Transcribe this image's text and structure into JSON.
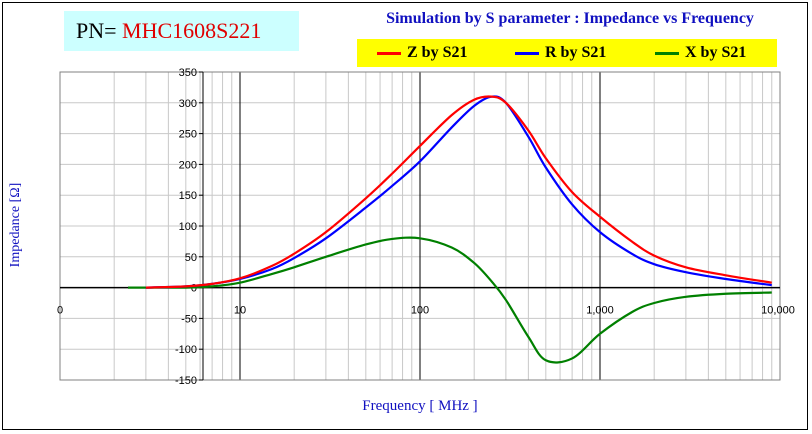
{
  "header": {
    "pn_prefix": "PN=",
    "pn_value": "MHC1608S221",
    "title": "Simulation by S parameter : Impedance vs Frequency"
  },
  "colors": {
    "z": "#ff0000",
    "r": "#0000ff",
    "x": "#008000",
    "pn_box": "#ccffff",
    "legend_bg": "#ffff00",
    "title": "#1010c0"
  },
  "chart_data": {
    "type": "line",
    "title": "Simulation by S parameter : Impedance vs Frequency",
    "xlabel": "Frequency [ MHz ]",
    "ylabel": "Impedance [Ω]",
    "x_scale": "log",
    "xlim": [
      1,
      10000
    ],
    "ylim": [
      -150,
      350
    ],
    "x_tick_labels": [
      "0",
      "10",
      "100",
      "1,000",
      "10,000"
    ],
    "y_ticks": [
      350,
      300,
      250,
      200,
      150,
      100,
      50,
      0,
      -50,
      -100,
      -150
    ],
    "y_tick_labels": [
      "350",
      "300",
      "250",
      "200",
      "150",
      "100",
      "50",
      "0",
      "-50",
      "-100",
      "-150"
    ],
    "grid": true,
    "legend_position": "top-right",
    "series": [
      {
        "name": "Z by S21",
        "color": "#ff0000",
        "x": [
          3,
          5,
          7,
          10,
          15,
          20,
          30,
          50,
          70,
          100,
          150,
          200,
          250,
          300,
          400,
          500,
          700,
          1000,
          1500,
          2000,
          3000,
          5000,
          9000
        ],
        "y": [
          0,
          2,
          6,
          15,
          35,
          55,
          90,
          145,
          185,
          230,
          280,
          305,
          310,
          300,
          255,
          210,
          155,
          115,
          75,
          52,
          33,
          20,
          8
        ]
      },
      {
        "name": "R by S21",
        "color": "#0000ff",
        "x": [
          3,
          5,
          7,
          10,
          15,
          20,
          30,
          50,
          70,
          100,
          150,
          200,
          250,
          300,
          400,
          500,
          700,
          1000,
          1500,
          2000,
          3000,
          5000,
          9000
        ],
        "y": [
          0,
          2,
          6,
          14,
          30,
          48,
          80,
          130,
          165,
          205,
          260,
          295,
          310,
          300,
          245,
          195,
          135,
          90,
          55,
          38,
          25,
          14,
          4
        ]
      },
      {
        "name": "X by S21",
        "color": "#008000",
        "x": [
          3,
          5,
          7,
          10,
          15,
          20,
          30,
          50,
          70,
          100,
          150,
          200,
          250,
          300,
          400,
          500,
          700,
          1000,
          1500,
          2000,
          3000,
          5000,
          9000
        ],
        "y": [
          0,
          0,
          2,
          8,
          22,
          33,
          50,
          70,
          79,
          80,
          65,
          40,
          10,
          -20,
          -80,
          -118,
          -115,
          -75,
          -40,
          -25,
          -15,
          -10,
          -8
        ]
      }
    ]
  }
}
